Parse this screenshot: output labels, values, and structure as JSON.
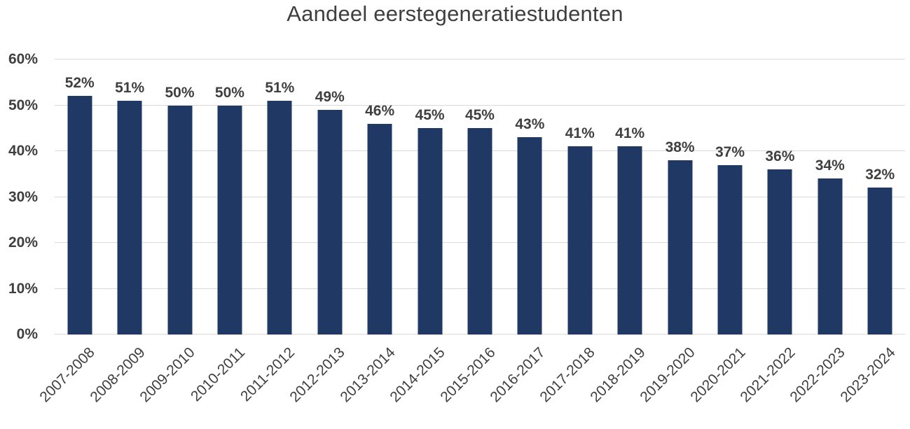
{
  "chart_data": {
    "type": "bar",
    "title": "Aandeel eerstegeneratiestudenten",
    "categories": [
      "2007-2008",
      "2008-2009",
      "2009-2010",
      "2010-2011",
      "2011-2012",
      "2012-2013",
      "2013-2014",
      "2014-2015",
      "2015-2016",
      "2016-2017",
      "2017-2018",
      "2018-2019",
      "2019-2020",
      "2020-2021",
      "2021-2022",
      "2022-2023",
      "2023-2024"
    ],
    "values": [
      52,
      51,
      50,
      50,
      51,
      49,
      46,
      45,
      45,
      43,
      41,
      41,
      38,
      37,
      36,
      34,
      32
    ],
    "value_label_suffix": "%",
    "y_ticks": [
      "0%",
      "10%",
      "20%",
      "30%",
      "40%",
      "50%",
      "60%"
    ],
    "ylim": [
      0,
      60
    ],
    "xlabel": "",
    "ylabel": "",
    "grid": true,
    "legend": "none",
    "colors": {
      "bar": "#1F3864",
      "text": "#3F3F3F",
      "gridline": "#D9D9D9",
      "background": "#FFFFFF"
    }
  }
}
